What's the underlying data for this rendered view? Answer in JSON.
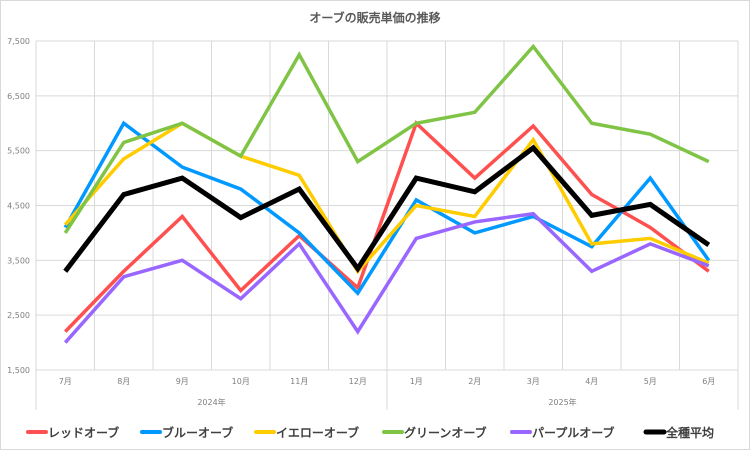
{
  "chart_data": {
    "type": "line",
    "title": "オーブの販売単価の推移",
    "categories": [
      "7月",
      "8月",
      "9月",
      "10月",
      "11月",
      "12月",
      "1月",
      "2月",
      "3月",
      "4月",
      "5月",
      "6月"
    ],
    "groups": [
      {
        "label": "2024年",
        "span": 6
      },
      {
        "label": "2025年",
        "span": 6
      }
    ],
    "ylim": [
      1500,
      7500
    ],
    "yticks": [
      1500,
      2500,
      3500,
      4500,
      5500,
      6500,
      7500
    ],
    "ytick_labels": [
      "1,500",
      "2,500",
      "3,500",
      "4,500",
      "5,500",
      "6,500",
      "7,500"
    ],
    "grid": true,
    "legend_position": "bottom",
    "series": [
      {
        "name": "レッドオーブ",
        "color": "#ff5050",
        "values": [
          2200,
          3300,
          4300,
          2950,
          3950,
          3000,
          6000,
          5000,
          5950,
          4700,
          4100,
          3300
        ]
      },
      {
        "name": "ブルーオーブ",
        "color": "#0099ff",
        "values": [
          4100,
          6000,
          5200,
          4800,
          4000,
          2900,
          4600,
          4000,
          4300,
          3750,
          5000,
          3500
        ]
      },
      {
        "name": "イエローオーブ",
        "color": "#ffcc00",
        "values": [
          4150,
          5350,
          6000,
          5400,
          5050,
          3300,
          4500,
          4300,
          5700,
          3800,
          3900,
          3450
        ]
      },
      {
        "name": "グリーンオーブ",
        "color": "#80c446",
        "values": [
          4000,
          5650,
          6000,
          5400,
          7250,
          5300,
          6000,
          6200,
          7400,
          6000,
          5800,
          5300
        ]
      },
      {
        "name": "パープルオーブ",
        "color": "#9966ff",
        "values": [
          2000,
          3200,
          3500,
          2800,
          3800,
          2200,
          3900,
          4200,
          4350,
          3300,
          3800,
          3400
        ]
      },
      {
        "name": "全種平均",
        "color": "#000000",
        "values": [
          3300,
          4700,
          5000,
          4280,
          4800,
          3350,
          5000,
          4750,
          5550,
          4320,
          4520,
          3780
        ]
      }
    ]
  }
}
